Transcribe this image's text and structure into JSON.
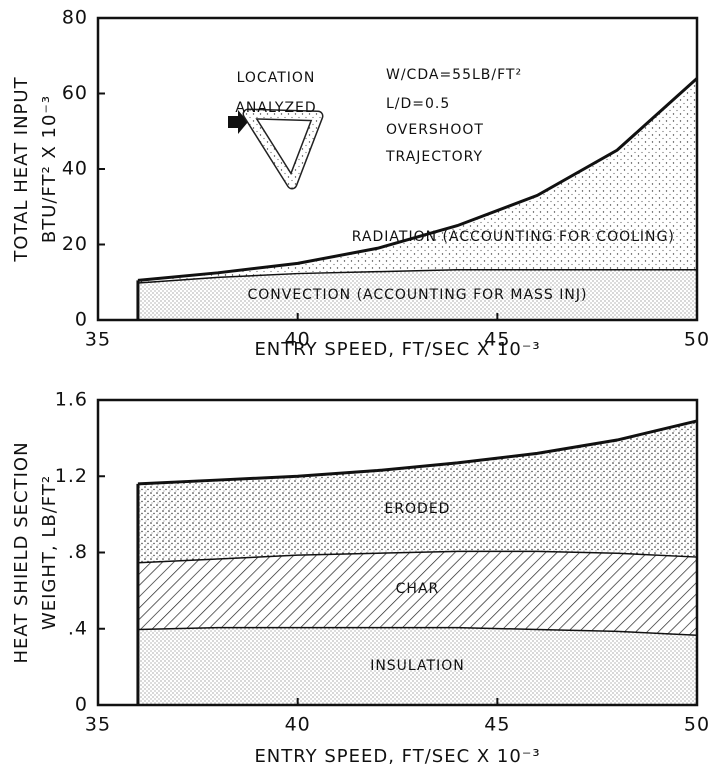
{
  "chart_data": [
    {
      "type": "area",
      "y_label": [
        "TOTAL HEAT INPUT",
        "BTU/FT² X 10⁻³"
      ],
      "x_label": "ENTRY SPEED, FT/SEC X 10⁻³",
      "annotations": [
        "LOCATION",
        "ANALYZED",
        "W/CDA=55LB/FT²",
        "L/D=0.5",
        "OVERSHOOT",
        "TRAJECTORY"
      ],
      "x": [
        36,
        38,
        40,
        42,
        44,
        46,
        48,
        50
      ],
      "xlim": [
        35,
        50
      ],
      "xticks": [
        35,
        40,
        45,
        50
      ],
      "ylim": [
        0,
        80
      ],
      "yticks": [
        0,
        20,
        40,
        60,
        80
      ],
      "series": [
        {
          "name": "CONVECTION (ACCOUNTING FOR MASS INJ)",
          "values": [
            10,
            11.5,
            12.5,
            13,
            13.5,
            13.5,
            13.5,
            13.5
          ]
        },
        {
          "name": "RADIATION (ACCOUNTING FOR COOLING)",
          "values": [
            0.5,
            1,
            2.5,
            6,
            11.5,
            19.5,
            31.5,
            50.5
          ]
        }
      ]
    },
    {
      "type": "area",
      "y_label": [
        "HEAT SHIELD SECTION",
        "WEIGHT, LB/FT²"
      ],
      "x_label": "ENTRY SPEED, FT/SEC X 10⁻³",
      "x": [
        36,
        38,
        40,
        42,
        44,
        46,
        48,
        50
      ],
      "xlim": [
        35,
        50
      ],
      "xticks": [
        35,
        40,
        45,
        50
      ],
      "ylim": [
        0,
        1.6
      ],
      "yticks": [
        0,
        {
          "value": 0.4,
          "label": ".4"
        },
        {
          "value": 0.8,
          "label": ".8"
        },
        1.2,
        1.6
      ],
      "series": [
        {
          "name": "INSULATION",
          "values": [
            0.4,
            0.41,
            0.41,
            0.41,
            0.41,
            0.4,
            0.39,
            0.37
          ]
        },
        {
          "name": "CHAR",
          "values": [
            0.35,
            0.36,
            0.38,
            0.39,
            0.4,
            0.41,
            0.41,
            0.41
          ]
        },
        {
          "name": "ERODED",
          "values": [
            0.41,
            0.41,
            0.41,
            0.43,
            0.46,
            0.51,
            0.59,
            0.71
          ]
        }
      ]
    }
  ]
}
